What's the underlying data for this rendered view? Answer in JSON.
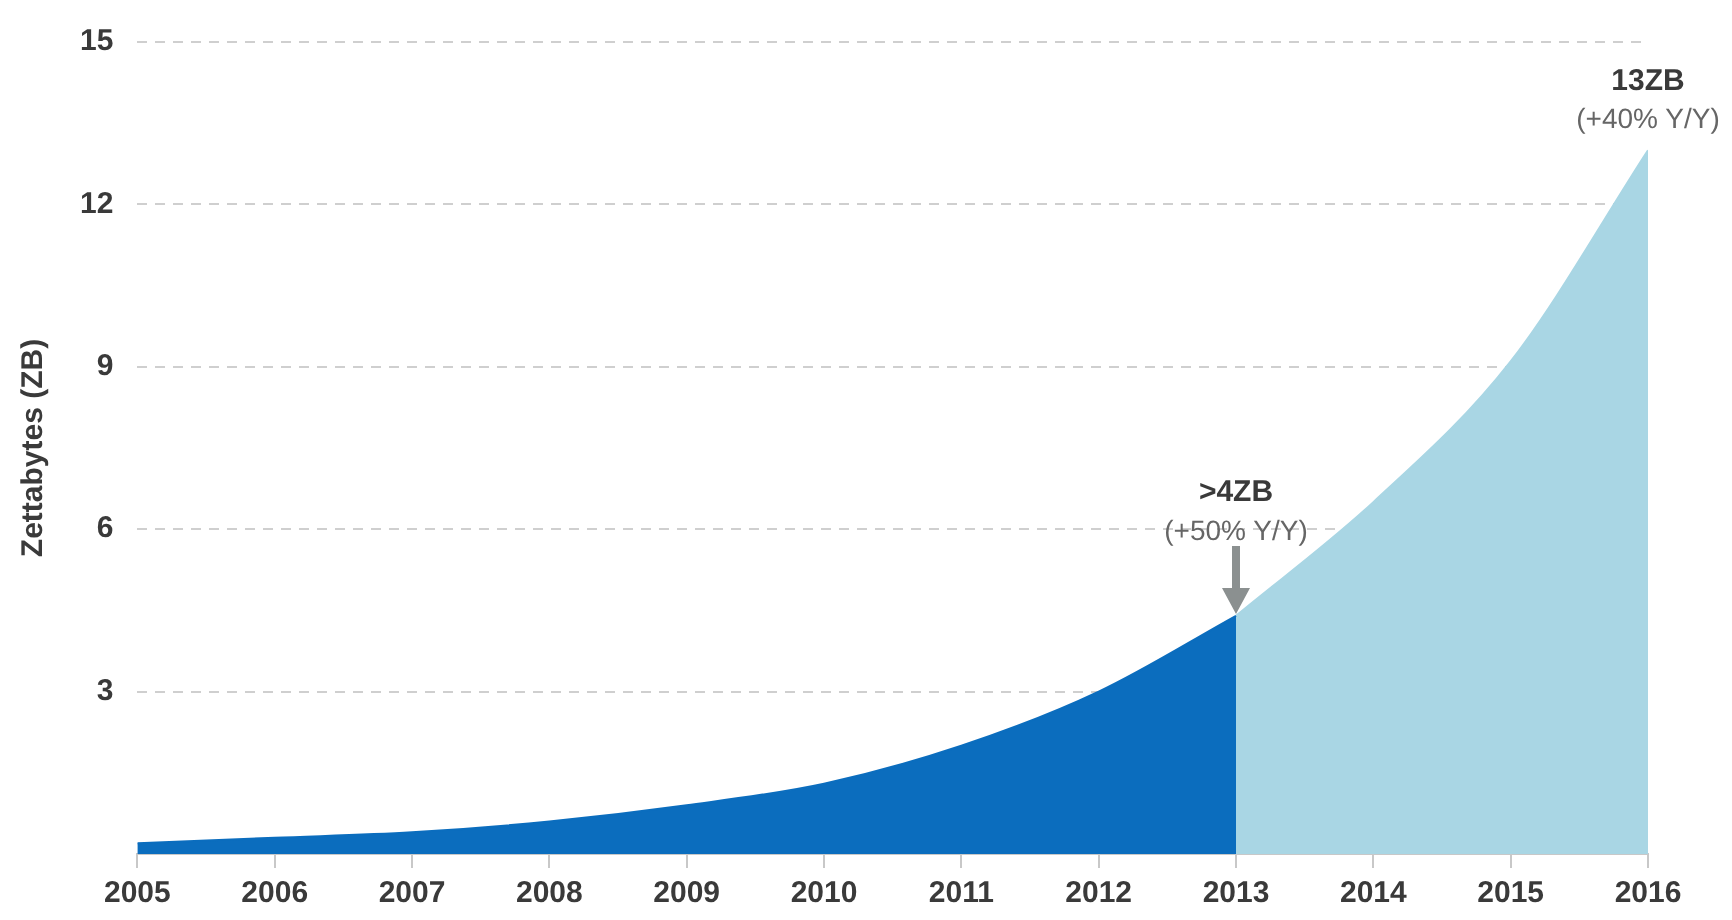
{
  "chart_data": {
    "type": "area",
    "ylabel": "Zettabytes (ZB)",
    "xlim": [
      2005,
      2016
    ],
    "xticks": [
      2005,
      2006,
      2007,
      2008,
      2009,
      2010,
      2011,
      2012,
      2013,
      2014,
      2015,
      2016
    ],
    "ylim": [
      0,
      15
    ],
    "yticks": [
      3,
      6,
      9,
      12,
      15
    ],
    "grid": "y",
    "series": [
      {
        "color": "#0b6dbe",
        "x": [
          2005,
          2006,
          2007,
          2008,
          2009,
          2010,
          2011,
          2012,
          2013
        ],
        "values": [
          0.2,
          0.3,
          0.4,
          0.6,
          0.9,
          1.3,
          2.0,
          3.0,
          4.4
        ]
      },
      {
        "color": "#a9d6e4",
        "x": [
          2013,
          2014,
          2015,
          2016
        ],
        "values": [
          4.4,
          6.5,
          9.1,
          13
        ]
      }
    ],
    "annotations": [
      {
        "text": ">4ZB\n(+50% Y/Y)",
        "x": 2013,
        "y": 4.4
      },
      {
        "text": "13ZB\n(+40% Y/Y)",
        "x": 2016,
        "y": 13
      }
    ]
  }
}
